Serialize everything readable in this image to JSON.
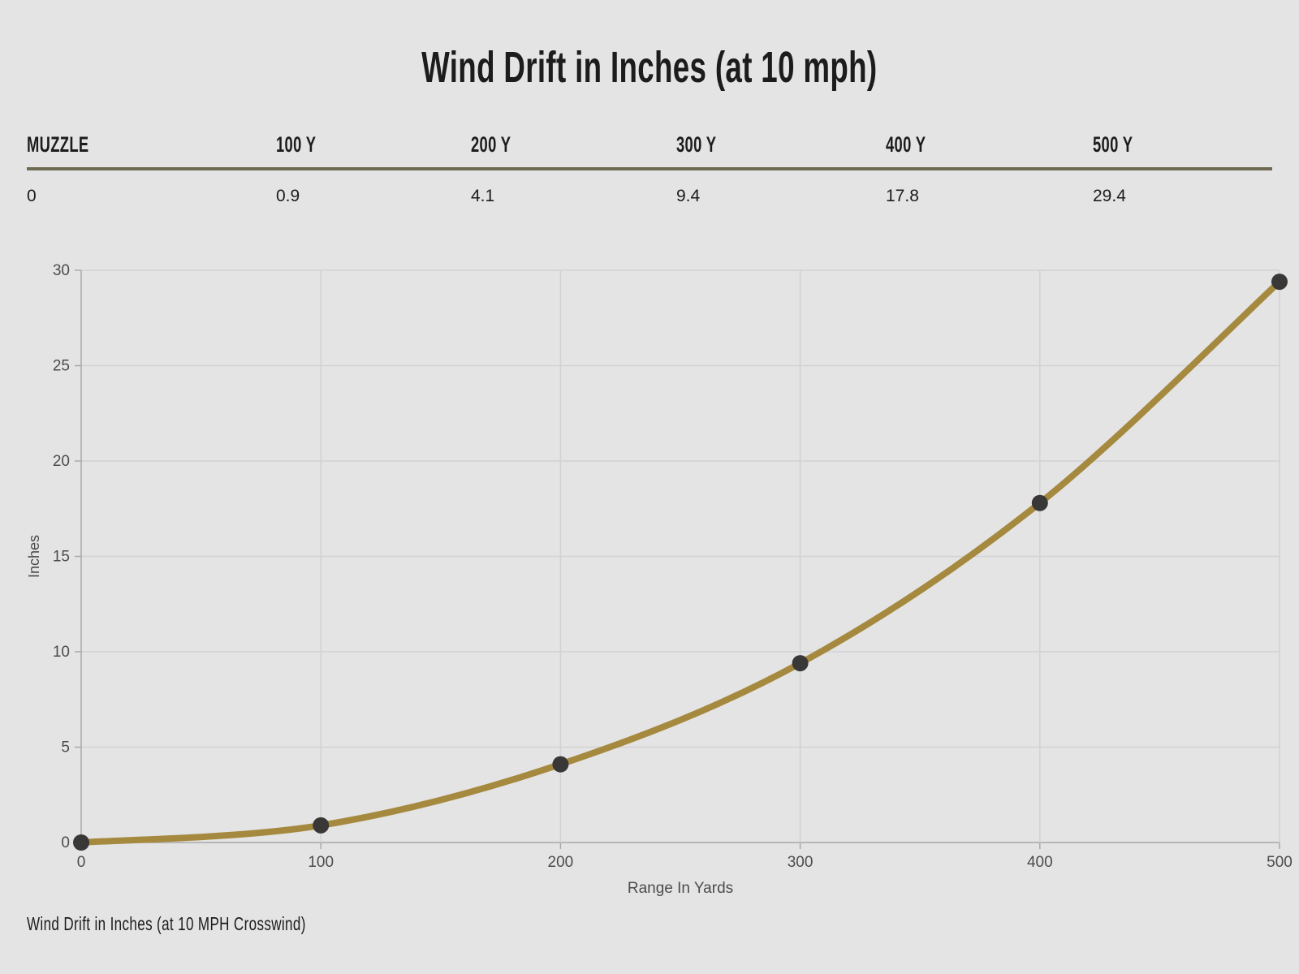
{
  "page": {
    "title": "Wind Drift in Inches (at 10 mph)",
    "caption": "Wind Drift in Inches (at 10 MPH Crosswind)"
  },
  "table": {
    "headers": [
      "MUZZLE",
      "100 Y",
      "200 Y",
      "300 Y",
      "400 Y",
      "500 Y"
    ],
    "values": [
      "0",
      "0.9",
      "4.1",
      "9.4",
      "17.8",
      "29.4"
    ]
  },
  "chart_data": {
    "type": "line",
    "x": [
      0,
      100,
      200,
      300,
      400,
      500
    ],
    "series": [
      {
        "name": "Wind Drift in Inches (at 10 MPH Crosswind)",
        "values": [
          0,
          0.9,
          4.1,
          9.4,
          17.8,
          29.4
        ]
      }
    ],
    "title": "Wind Drift in Inches (at 10 mph)",
    "xlabel": "Range In Yards",
    "ylabel": "Inches",
    "xlim": [
      0,
      500
    ],
    "ylim": [
      0,
      30
    ],
    "xticks": [
      0,
      100,
      200,
      300,
      400,
      500
    ],
    "yticks": [
      0,
      5,
      10,
      15,
      20,
      25,
      30
    ],
    "grid": true,
    "legend_position": "none",
    "line_color": "#a5893e",
    "marker_color": "#3a3836",
    "grid_color": "#d2d1d3",
    "axis_color": "#a9a8aa",
    "tick_text_color": "#4c4c4c",
    "axis_label_color": "#4c4c4c"
  },
  "colors": {
    "background": "#e5e4e5",
    "table_rule": "#6f6b52",
    "heading_text": "#1c1c1c"
  }
}
